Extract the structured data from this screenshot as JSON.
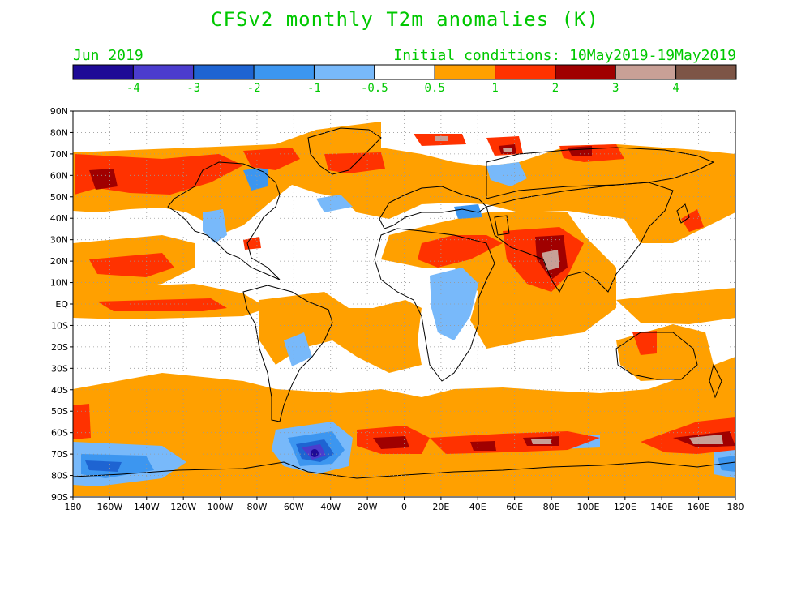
{
  "title": "CFSv2 monthly T2m anomalies (K)",
  "valid_month": "Jun 2019",
  "initial_conditions": "Initial conditions: 10May2019-19May2019",
  "colorbar": {
    "colors": [
      "#1e0a96",
      "#4b3ccd",
      "#1e64d2",
      "#3c96f0",
      "#78b9fa",
      "#ffffff",
      "#ffa000",
      "#ff3200",
      "#a00000",
      "#c8a096",
      "#7d5546"
    ],
    "labels": [
      "-4",
      "-3",
      "-2",
      "-1",
      "-0.5",
      "0.5",
      "1",
      "2",
      "3",
      "4"
    ]
  },
  "map": {
    "y_tick_labels": [
      "90N",
      "80N",
      "70N",
      "60N",
      "50N",
      "40N",
      "30N",
      "20N",
      "10N",
      "EQ",
      "10S",
      "20S",
      "30S",
      "40S",
      "50S",
      "60S",
      "70S",
      "80S",
      "90S"
    ],
    "x_tick_labels": [
      "180",
      "160W",
      "140W",
      "120W",
      "100W",
      "80W",
      "60W",
      "40W",
      "20W",
      "0",
      "20E",
      "40E",
      "60E",
      "80E",
      "100E",
      "120E",
      "140E",
      "160E",
      "180"
    ],
    "label_color": "#000000",
    "grid_color": "#9a9a9a"
  }
}
